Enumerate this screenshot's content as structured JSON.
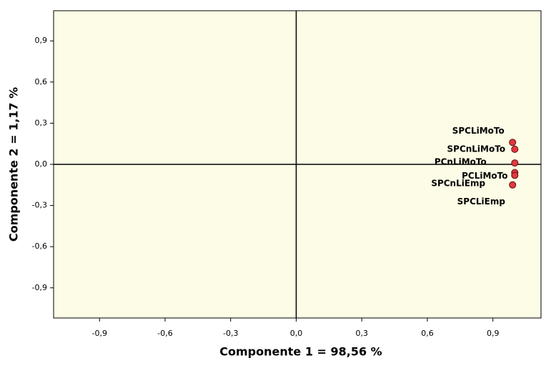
{
  "chart_data": {
    "type": "scatter",
    "xlabel": "Componente 1 = 98,56 %",
    "ylabel": "Componente 2 = 1,17 %",
    "x": [
      0.99,
      1.0,
      1.0,
      1.0,
      0.99,
      1.0
    ],
    "y": [
      0.16,
      0.11,
      0.01,
      -0.06,
      -0.15,
      -0.08
    ],
    "labels": [
      "SPCLiMoTo",
      "SPCnLiMoTo",
      "PCnLiMoTo",
      "PCLiMoTo",
      "SPCnLiEmp",
      "SPCLiEmp"
    ],
    "color": "#e0393e",
    "xlim": [
      -1.11,
      1.12
    ],
    "ylim": [
      -1.12,
      1.12
    ],
    "xticks": [
      {
        "value": -0.9,
        "label": "-0,9"
      },
      {
        "value": -0.6,
        "label": "-0,6"
      },
      {
        "value": -0.3,
        "label": "-0,3"
      },
      {
        "value": 0,
        "label": "0,0"
      },
      {
        "value": 0.3,
        "label": "0,3"
      },
      {
        "value": 0.6,
        "label": "0,6"
      },
      {
        "value": 0.9,
        "label": "0,9"
      }
    ],
    "yticks": [
      {
        "value": -0.9,
        "label": "-0,9"
      },
      {
        "value": -0.6,
        "label": "-0,6"
      },
      {
        "value": -0.3,
        "label": "-0,3"
      },
      {
        "value": 0,
        "label": "0,0"
      },
      {
        "value": 0.3,
        "label": "0,3"
      },
      {
        "value": 0.6,
        "label": "0,6"
      },
      {
        "value": 0.9,
        "label": "0,9"
      }
    ]
  }
}
